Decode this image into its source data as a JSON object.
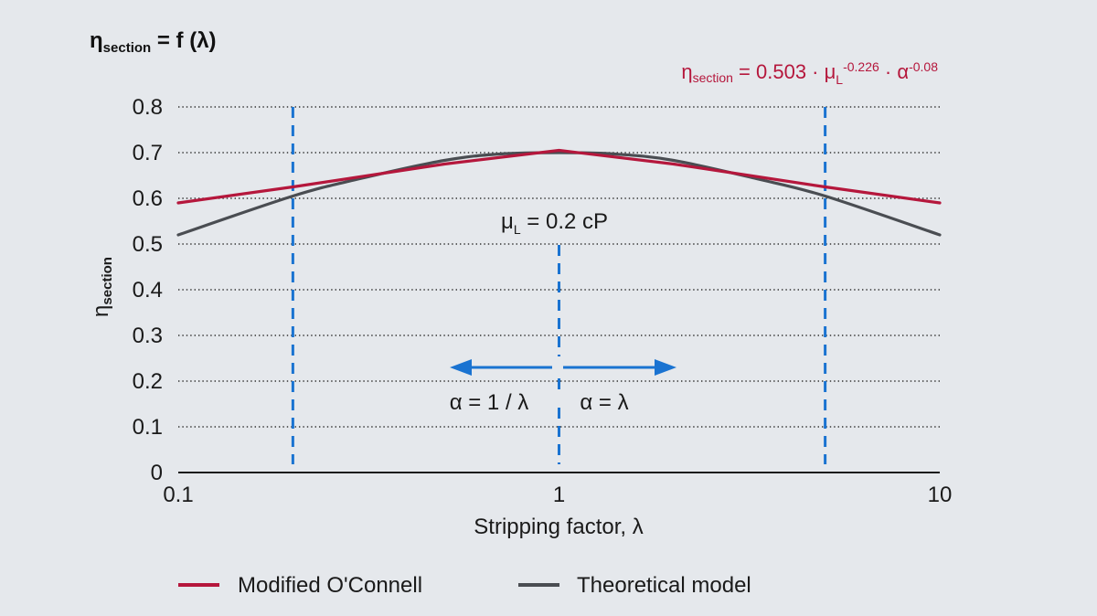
{
  "chart_data": {
    "type": "line",
    "title": "ηsection = f (λ)",
    "title_parts": {
      "symbol": "η",
      "subscript": "section",
      "rest": " = f (λ)"
    },
    "formula": {
      "symbol": "η",
      "subscript": "section",
      "text1": " = 0.503 · μ",
      "sub_L": "L",
      "exp1": "-0.226",
      "text2": " · α",
      "exp2": "-0.08"
    },
    "xlabel": "Stripping factor, λ",
    "ylabel": {
      "symbol": "η",
      "subscript": "section"
    },
    "x_scale": "log",
    "xlim": [
      0.1,
      10
    ],
    "ylim": [
      0,
      0.8
    ],
    "x_ticks": [
      {
        "value": 0.1,
        "label": "0.1"
      },
      {
        "value": 1,
        "label": "1"
      },
      {
        "value": 10,
        "label": "10"
      }
    ],
    "y_ticks": [
      {
        "value": 0,
        "label": "0"
      },
      {
        "value": 0.1,
        "label": "0.1"
      },
      {
        "value": 0.2,
        "label": "0.2"
      },
      {
        "value": 0.3,
        "label": "0.3"
      },
      {
        "value": 0.4,
        "label": "0.4"
      },
      {
        "value": 0.5,
        "label": "0.5"
      },
      {
        "value": 0.6,
        "label": "0.6"
      },
      {
        "value": 0.7,
        "label": "0.7"
      },
      {
        "value": 0.8,
        "label": "0.8"
      }
    ],
    "grid": "horizontal-dotted",
    "series": [
      {
        "name": "Modified O'Connell",
        "color": "#b5173c",
        "x": [
          0.1,
          0.2,
          0.5,
          1,
          2,
          5,
          10
        ],
        "y": [
          0.59,
          0.625,
          0.675,
          0.705,
          0.675,
          0.625,
          0.59
        ]
      },
      {
        "name": "Theoretical model",
        "color": "#4a4d52",
        "x": [
          0.1,
          0.2,
          0.3,
          0.5,
          0.7,
          1,
          1.4,
          2,
          3.3,
          5,
          10
        ],
        "y": [
          0.52,
          0.605,
          0.643,
          0.683,
          0.697,
          0.7,
          0.697,
          0.683,
          0.643,
          0.605,
          0.52
        ]
      }
    ],
    "vlines": [
      {
        "x": 0.2,
        "color": "#1a73d1"
      },
      {
        "x": 1,
        "color": "#1a73d1"
      },
      {
        "x": 5,
        "color": "#1a73d1"
      }
    ],
    "annotations": {
      "mu": {
        "symbol": "μ",
        "sub": "L",
        "rest": " = 0.2 cP"
      },
      "left_arrow_label": "α = 1 / λ",
      "right_arrow_label": "α = λ",
      "arrow_color": "#1a73d1"
    },
    "legend": [
      {
        "label": "Modified O'Connell",
        "color": "#b5173c"
      },
      {
        "label": "Theoretical model",
        "color": "#4a4d52"
      }
    ]
  }
}
